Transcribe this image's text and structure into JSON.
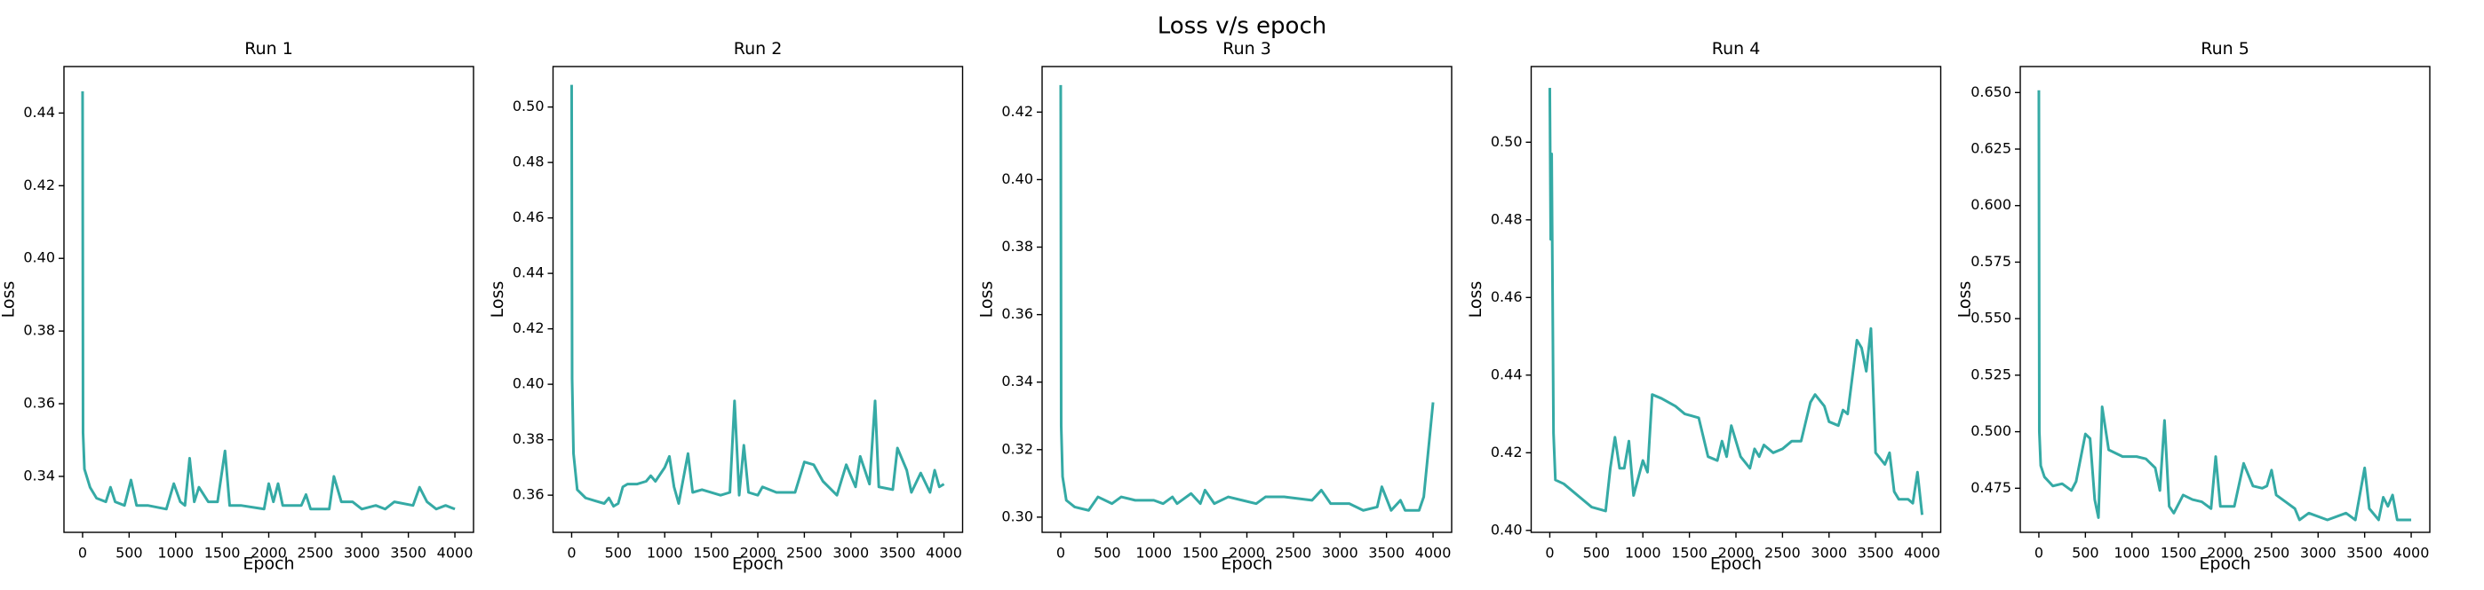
{
  "figure_title": "Loss v/s epoch",
  "chart_data": [
    {
      "type": "line",
      "title": "Run 1",
      "x_label": "Epoch",
      "y_label": "Loss",
      "color": "#35aaa5",
      "xlim": [
        -200,
        4200
      ],
      "xticks": [
        0,
        500,
        1000,
        1500,
        2000,
        2500,
        3000,
        3500,
        4000
      ],
      "ylim": [
        0.3246,
        0.4528
      ],
      "yticks": [
        0.34,
        0.36,
        0.38,
        {
          "value": 0.4,
          "label": "0.40"
        },
        0.42,
        0.44
      ],
      "x": [
        0,
        5,
        20,
        80,
        150,
        250,
        300,
        350,
        450,
        520,
        580,
        700,
        900,
        980,
        1050,
        1100,
        1150,
        1200,
        1250,
        1350,
        1450,
        1530,
        1580,
        1700,
        1950,
        2000,
        2050,
        2100,
        2150,
        2350,
        2400,
        2450,
        2650,
        2700,
        2780,
        2900,
        3000,
        3150,
        3250,
        3350,
        3550,
        3620,
        3700,
        3800,
        3900,
        4000
      ],
      "values": [
        0.446,
        0.352,
        0.342,
        0.337,
        0.334,
        0.333,
        0.337,
        0.333,
        0.332,
        0.339,
        0.332,
        0.332,
        0.331,
        0.338,
        0.333,
        0.332,
        0.345,
        0.333,
        0.337,
        0.333,
        0.333,
        0.347,
        0.332,
        0.332,
        0.331,
        0.338,
        0.333,
        0.338,
        0.332,
        0.332,
        0.335,
        0.331,
        0.331,
        0.34,
        0.333,
        0.333,
        0.331,
        0.332,
        0.331,
        0.333,
        0.332,
        0.337,
        0.333,
        0.331,
        0.332,
        0.331
      ]
    },
    {
      "type": "line",
      "title": "Run 2",
      "x_label": "Epoch",
      "y_label": "Loss",
      "color": "#35aaa5",
      "xlim": [
        -200,
        4200
      ],
      "xticks": [
        0,
        500,
        1000,
        1500,
        2000,
        2500,
        3000,
        3500,
        4000
      ],
      "ylim": [
        0.3466,
        0.5146
      ],
      "yticks": [
        0.36,
        0.38,
        {
          "value": 0.4,
          "label": "0.40"
        },
        0.42,
        0.44,
        0.46,
        0.48,
        {
          "value": 0.5,
          "label": "0.50"
        }
      ],
      "x": [
        0,
        5,
        20,
        60,
        150,
        250,
        350,
        400,
        450,
        500,
        550,
        600,
        700,
        800,
        850,
        900,
        1000,
        1050,
        1100,
        1150,
        1250,
        1300,
        1400,
        1500,
        1600,
        1700,
        1750,
        1800,
        1850,
        1900,
        2000,
        2050,
        2200,
        2400,
        2500,
        2600,
        2700,
        2850,
        2950,
        3050,
        3100,
        3200,
        3260,
        3300,
        3450,
        3500,
        3600,
        3650,
        3750,
        3850,
        3900,
        3950,
        4000
      ],
      "values": [
        0.508,
        0.402,
        0.375,
        0.362,
        0.359,
        0.358,
        0.357,
        0.359,
        0.356,
        0.357,
        0.363,
        0.364,
        0.364,
        0.365,
        0.367,
        0.365,
        0.37,
        0.374,
        0.363,
        0.357,
        0.375,
        0.361,
        0.362,
        0.361,
        0.36,
        0.361,
        0.394,
        0.36,
        0.378,
        0.361,
        0.36,
        0.363,
        0.361,
        0.361,
        0.372,
        0.371,
        0.365,
        0.36,
        0.371,
        0.363,
        0.374,
        0.364,
        0.394,
        0.363,
        0.362,
        0.377,
        0.369,
        0.361,
        0.368,
        0.361,
        0.369,
        0.363,
        0.364
      ]
    },
    {
      "type": "line",
      "title": "Run 3",
      "x_label": "Epoch",
      "y_label": "Loss",
      "color": "#35aaa5",
      "xlim": [
        -200,
        4200
      ],
      "xticks": [
        0,
        500,
        1000,
        1500,
        2000,
        2500,
        3000,
        3500,
        4000
      ],
      "ylim": [
        0.2955,
        0.4335
      ],
      "yticks": [
        {
          "value": 0.3,
          "label": "0.30"
        },
        0.32,
        0.34,
        0.36,
        0.38,
        {
          "value": 0.4,
          "label": "0.40"
        },
        0.42
      ],
      "x": [
        0,
        5,
        20,
        60,
        150,
        300,
        400,
        550,
        650,
        800,
        1000,
        1100,
        1200,
        1250,
        1400,
        1500,
        1550,
        1650,
        1800,
        1950,
        2100,
        2200,
        2400,
        2700,
        2800,
        2900,
        3100,
        3250,
        3400,
        3450,
        3550,
        3650,
        3700,
        3850,
        3900,
        3950,
        4000
      ],
      "values": [
        0.428,
        0.327,
        0.312,
        0.305,
        0.303,
        0.302,
        0.306,
        0.304,
        0.306,
        0.305,
        0.305,
        0.304,
        0.306,
        0.304,
        0.307,
        0.304,
        0.308,
        0.304,
        0.306,
        0.305,
        0.304,
        0.306,
        0.306,
        0.305,
        0.308,
        0.304,
        0.304,
        0.302,
        0.303,
        0.309,
        0.302,
        0.305,
        0.302,
        0.302,
        0.306,
        0.32,
        0.334
      ]
    },
    {
      "type": "line",
      "title": "Run 4",
      "x_label": "Epoch",
      "y_label": "Loss",
      "color": "#35aaa5",
      "xlim": [
        -200,
        4200
      ],
      "xticks": [
        0,
        500,
        1000,
        1500,
        2000,
        2500,
        3000,
        3500,
        4000
      ],
      "ylim": [
        0.3995,
        0.5195
      ],
      "yticks": [
        {
          "value": 0.4,
          "label": "0.40"
        },
        0.42,
        0.44,
        0.46,
        0.48,
        {
          "value": 0.5,
          "label": "0.50"
        }
      ],
      "x": [
        0,
        10,
        20,
        40,
        60,
        150,
        300,
        450,
        600,
        650,
        700,
        750,
        800,
        850,
        900,
        1000,
        1050,
        1100,
        1200,
        1350,
        1450,
        1600,
        1700,
        1800,
        1850,
        1900,
        1950,
        2050,
        2150,
        2200,
        2250,
        2300,
        2400,
        2500,
        2600,
        2700,
        2800,
        2850,
        2950,
        3000,
        3100,
        3150,
        3200,
        3300,
        3350,
        3400,
        3450,
        3500,
        3600,
        3650,
        3700,
        3750,
        3850,
        3900,
        3950,
        4000
      ],
      "values": [
        0.514,
        0.475,
        0.497,
        0.425,
        0.413,
        0.412,
        0.409,
        0.406,
        0.405,
        0.416,
        0.424,
        0.416,
        0.416,
        0.423,
        0.409,
        0.418,
        0.415,
        0.435,
        0.434,
        0.432,
        0.43,
        0.429,
        0.419,
        0.418,
        0.423,
        0.419,
        0.427,
        0.419,
        0.416,
        0.421,
        0.419,
        0.422,
        0.42,
        0.421,
        0.423,
        0.423,
        0.433,
        0.435,
        0.432,
        0.428,
        0.427,
        0.431,
        0.43,
        0.449,
        0.447,
        0.441,
        0.452,
        0.42,
        0.417,
        0.42,
        0.41,
        0.408,
        0.408,
        0.407,
        0.415,
        0.404
      ]
    },
    {
      "type": "line",
      "title": "Run 5",
      "x_label": "Epoch",
      "y_label": "Loss",
      "color": "#35aaa5",
      "xlim": [
        -200,
        4200
      ],
      "xticks": [
        0,
        500,
        1000,
        1500,
        2000,
        2500,
        3000,
        3500,
        4000
      ],
      "ylim": [
        0.4555,
        0.6615
      ],
      "yticks": [
        0.475,
        {
          "value": 0.5,
          "label": "0.500"
        },
        0.525,
        {
          "value": 0.55,
          "label": "0.550"
        },
        0.575,
        {
          "value": 0.6,
          "label": "0.600"
        },
        0.625,
        {
          "value": 0.65,
          "label": "0.650"
        }
      ],
      "x": [
        0,
        5,
        20,
        60,
        150,
        250,
        350,
        400,
        500,
        550,
        600,
        640,
        680,
        750,
        900,
        1050,
        1150,
        1250,
        1300,
        1350,
        1400,
        1450,
        1550,
        1650,
        1750,
        1850,
        1900,
        1950,
        2100,
        2200,
        2300,
        2400,
        2450,
        2500,
        2550,
        2650,
        2750,
        2800,
        2900,
        3100,
        3300,
        3400,
        3500,
        3550,
        3650,
        3700,
        3750,
        3800,
        3850,
        4000
      ],
      "values": [
        0.651,
        0.5,
        0.485,
        0.48,
        0.476,
        0.477,
        0.474,
        0.478,
        0.499,
        0.497,
        0.47,
        0.462,
        0.511,
        0.492,
        0.489,
        0.489,
        0.488,
        0.484,
        0.474,
        0.505,
        0.467,
        0.464,
        0.472,
        0.47,
        0.469,
        0.466,
        0.489,
        0.467,
        0.467,
        0.486,
        0.476,
        0.475,
        0.476,
        0.483,
        0.472,
        0.469,
        0.466,
        0.461,
        0.464,
        0.461,
        0.464,
        0.461,
        0.484,
        0.466,
        0.461,
        0.471,
        0.467,
        0.472,
        0.461,
        0.461
      ]
    }
  ]
}
